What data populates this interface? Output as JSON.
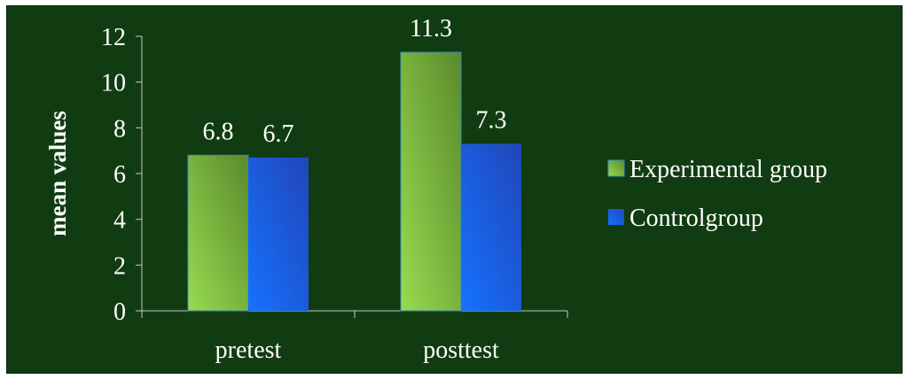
{
  "chart_data": {
    "type": "bar",
    "categories": [
      "pretest",
      "posttest"
    ],
    "series": [
      {
        "name": "Experimental group",
        "values": [
          6.8,
          11.3
        ],
        "color": "#7ec043"
      },
      {
        "name": "Controlgroup",
        "values": [
          6.7,
          7.3
        ],
        "color": "#1f6df5"
      }
    ],
    "data_labels": [
      "6.8",
      "6.7",
      "11.3",
      "7.3"
    ],
    "ylabel": "mean values",
    "xlabel": "",
    "title": "",
    "ylim": [
      0,
      12
    ],
    "yticks": [
      0,
      2,
      4,
      6,
      8,
      10,
      12
    ],
    "grid": false,
    "legend_position": "right",
    "background_color": "#113c11"
  }
}
